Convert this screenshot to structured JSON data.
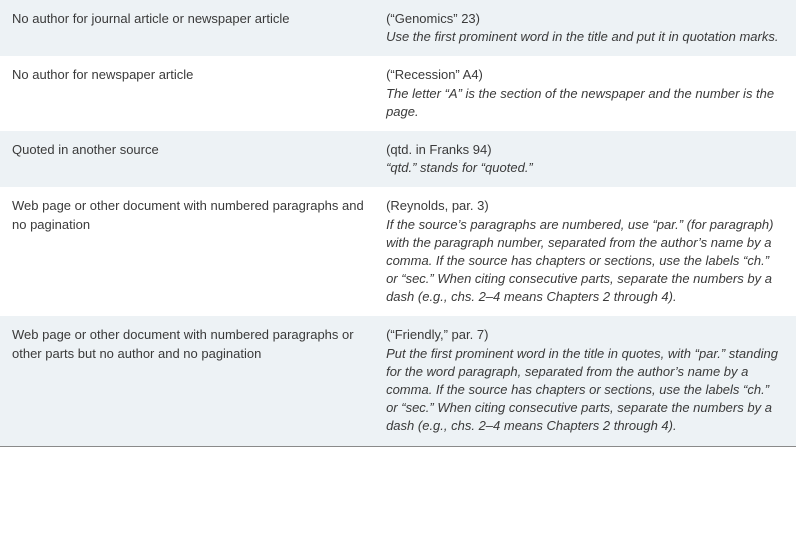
{
  "rows": [
    {
      "desc": "No author for journal article or newspaper article",
      "example": "(“Genomics” 23)",
      "note": "Use the first prominent word in the title and put it in quotation marks.",
      "alt": true
    },
    {
      "desc": "No author for newspaper article",
      "example": "(“Recession” A4)",
      "note": "The letter “A” is the section of the newspaper and the number is the page.",
      "alt": false
    },
    {
      "desc": "Quoted in another source",
      "example": "(qtd. in Franks 94)",
      "note": "“qtd.” stands for “quoted.”",
      "alt": true
    },
    {
      "desc": "Web page or other document with numbered paragraphs and no pagination",
      "example": "(Reynolds, par. 3)",
      "note": "If the source’s paragraphs are numbered, use “par.” (for paragraph) with the paragraph number, separated from the author’s name by a comma. If the source has chapters or sections, use the labels “ch.” or “sec.” When citing consecutive parts, separate the numbers by a dash (e.g., chs. 2–4 means Chapters 2 through 4).",
      "alt": false
    },
    {
      "desc": "Web page or other document with numbered paragraphs or other parts but no author and no pagination",
      "example": "(“Friendly,” par. 7)",
      "note": "Put the first prominent word in the title in quotes, with “par.” standing for the word paragraph, separated from the author’s name by a comma. If the source has chapters or sections, use the labels “ch.” or “sec.” When citing consecutive parts, separate the numbers by a dash (e.g., chs. 2–4 means Chapters 2 through 4).",
      "alt": true
    }
  ],
  "colors": {
    "alt_bg": "#edf2f5",
    "text": "#3a3a3a",
    "border": "#8a8a8a"
  }
}
